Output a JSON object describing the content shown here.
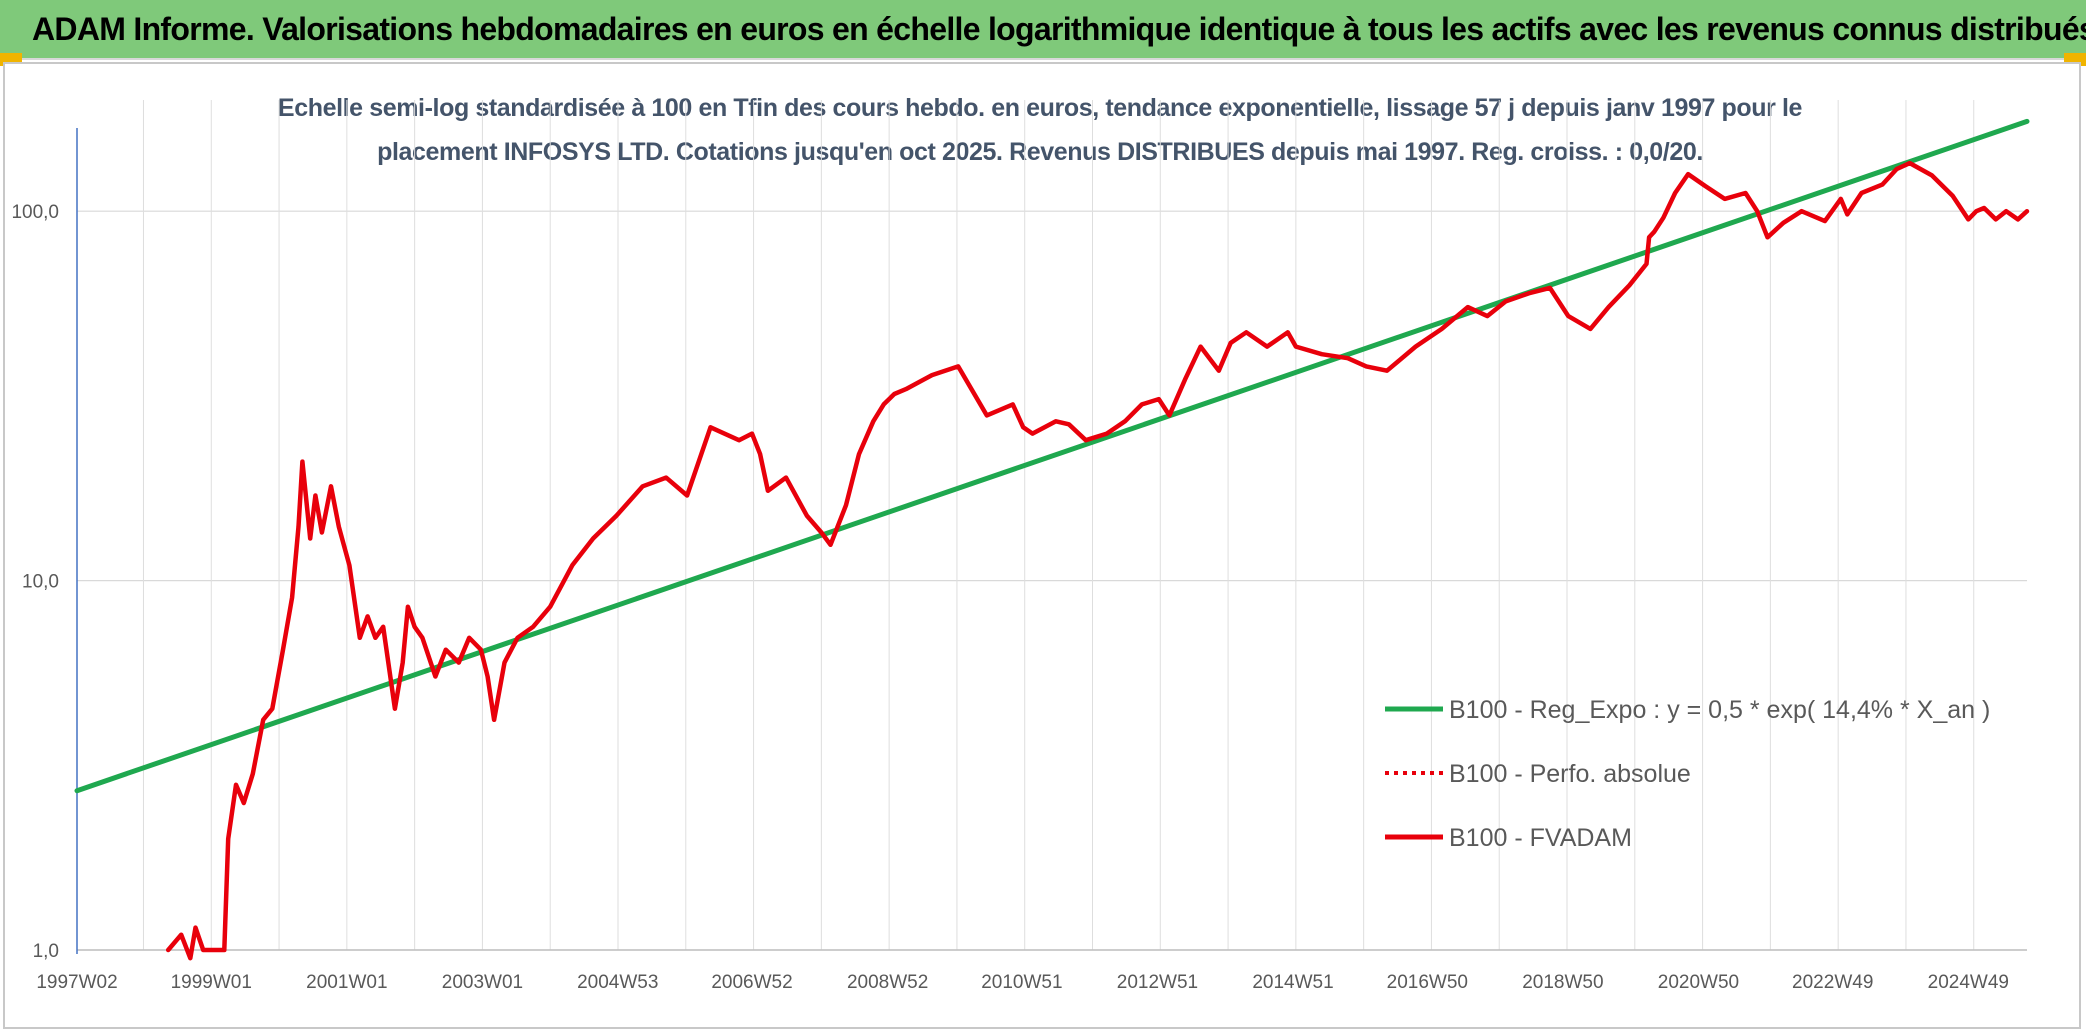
{
  "banner": {
    "title": "ADAM Informe. Valorisations hebdomadaires en euros en échelle logarithmique identique à tous les actifs avec les revenus connus distribués",
    "background": "#7fc97a"
  },
  "chart_data": {
    "type": "line",
    "title": "Echelle semi-log standardisée à 100 en Tfin des cours hebdo. en euros, tendance exponentielle, lissage 57 j depuis janv 1997 pour le placement INFOSYS LTD. Cotations jusqu'en oct 2025. Revenus DISTRIBUES depuis mai 1997. Reg. croiss. : 0,0/20.",
    "xlabel": "",
    "ylabel": "",
    "y_scale": "log",
    "ylim": [
      1,
      200
    ],
    "xlim": [
      "1997W02",
      "2025W42"
    ],
    "grid": true,
    "legend_position": "lower-right",
    "y_ticks": [
      {
        "value": 1,
        "label": "1,0"
      },
      {
        "value": 10,
        "label": "10,0"
      },
      {
        "value": 100,
        "label": "100,0"
      }
    ],
    "x_ticks": [
      {
        "value": "1997W02",
        "label": "1997W02"
      },
      {
        "value": "1999W01",
        "label": "1999W01"
      },
      {
        "value": "2001W01",
        "label": "2001W01"
      },
      {
        "value": "2003W01",
        "label": "2003W01"
      },
      {
        "value": "2004W53",
        "label": "2004W53"
      },
      {
        "value": "2006W52",
        "label": "2006W52"
      },
      {
        "value": "2008W52",
        "label": "2008W52"
      },
      {
        "value": "2010W51",
        "label": "2010W51"
      },
      {
        "value": "2012W51",
        "label": "2012W51"
      },
      {
        "value": "2014W51",
        "label": "2014W51"
      },
      {
        "value": "2016W50",
        "label": "2016W50"
      },
      {
        "value": "2018W50",
        "label": "2018W50"
      },
      {
        "value": "2020W50",
        "label": "2020W50"
      },
      {
        "value": "2022W49",
        "label": "2022W49"
      },
      {
        "value": "2024W49",
        "label": "2024W49"
      }
    ],
    "series": [
      {
        "name": "B100 - Reg_Expo : y = 0,5 * exp( 14,4% *  X_an )",
        "color": "#1fa84f",
        "style": "solid",
        "x": [
          "1997W02",
          "2025W42"
        ],
        "y": [
          2.7,
          175
        ]
      },
      {
        "name": "B100 - Perfo. absolue",
        "color": "#e8000b",
        "style": "dotted",
        "x": [],
        "y": []
      },
      {
        "name": "B100 - FVADAM",
        "color": "#e8000b",
        "style": "solid",
        "x": [
          "1998W20",
          "1998W30",
          "1998W37",
          "1998W41",
          "1998W47",
          "1999W04",
          "1999W11",
          "1999W14",
          "1999W20",
          "1999W26",
          "1999W33",
          "1999W41",
          "1999W48",
          "2000W04",
          "2000W11",
          "2000W16",
          "2000W19",
          "2000W25",
          "2000W29",
          "2000W34",
          "2000W41",
          "2000W47",
          "2001W03",
          "2001W11",
          "2001W17",
          "2001W23",
          "2001W29",
          "2001W38",
          "2001W44",
          "2001W48",
          "2002W01",
          "2002W07",
          "2002W17",
          "2002W25",
          "2002W35",
          "2002W43",
          "2002W52",
          "2003W05",
          "2003W10",
          "2003W18",
          "2003W28",
          "2003W40",
          "2004W01",
          "2004W18",
          "2004W34",
          "2004W52",
          "2005W20",
          "2005W38",
          "2006W02",
          "2006W20",
          "2006W42",
          "2006W52",
          "2007W06",
          "2007W12",
          "2007W26",
          "2007W42",
          "2008W01",
          "2008W08",
          "2008W20",
          "2008W30",
          "2008W41",
          "2008W49",
          "2009W05",
          "2009W14",
          "2009W34",
          "2010W02",
          "2010W24",
          "2010W44",
          "2010W52",
          "2011W07",
          "2011W25",
          "2011W35",
          "2011W48",
          "2012W12",
          "2012W26",
          "2012W39",
          "2012W52",
          "2013W08",
          "2013W20",
          "2013W32",
          "2013W46",
          "2014W03",
          "2014W15",
          "2014W31",
          "2014W47",
          "2015W01",
          "2015W21",
          "2015W41",
          "2016W03",
          "2016W19",
          "2016W41",
          "2017W09",
          "2017W29",
          "2017W44",
          "2018W06",
          "2018W24",
          "2018W40",
          "2019W02",
          "2019W19",
          "2019W33",
          "2019W49",
          "2020W10",
          "2020W12",
          "2020W16",
          "2020W23",
          "2020W32",
          "2020W42",
          "2021W03",
          "2021W18",
          "2021W34",
          "2021W43",
          "2021W51",
          "2022W11",
          "2022W25",
          "2022W43",
          "2023W03",
          "2023W08",
          "2023W19",
          "2023W35",
          "2023W46",
          "2024W04",
          "2024W21",
          "2024W37",
          "2024W49",
          "2025W03",
          "2025W09",
          "2025W18",
          "2025W26",
          "2025W35",
          "2025W42"
        ],
        "y": [
          1.0,
          1.1,
          0.95,
          1.15,
          1.0,
          1.0,
          1.0,
          2.0,
          2.8,
          2.5,
          3.0,
          4.2,
          4.5,
          6.5,
          9.0,
          14.0,
          21.0,
          13.0,
          17.0,
          13.5,
          18.0,
          14.0,
          11.0,
          7.0,
          8.0,
          7.0,
          7.5,
          4.5,
          6.0,
          8.5,
          7.5,
          7.0,
          5.5,
          6.5,
          6.0,
          7.0,
          6.5,
          5.5,
          4.2,
          6.0,
          7.0,
          7.5,
          8.5,
          11.0,
          13.0,
          15.0,
          18.0,
          19.0,
          17.0,
          26.0,
          24.0,
          25.0,
          22.0,
          17.5,
          19.0,
          15.0,
          13.5,
          12.5,
          16.0,
          22.0,
          27.0,
          30.0,
          32.0,
          33.0,
          36.0,
          38.0,
          28.0,
          30.0,
          26.0,
          25.0,
          27.0,
          26.5,
          24.0,
          25.0,
          27.0,
          30.0,
          31.0,
          28.0,
          35.0,
          43.0,
          37.0,
          44.0,
          47.0,
          43.0,
          47.0,
          43.0,
          41.0,
          40.0,
          38.0,
          37.0,
          43.0,
          48.0,
          55.0,
          52.0,
          57.0,
          60.0,
          62.0,
          52.0,
          48.0,
          55.0,
          63.0,
          72.0,
          85.0,
          88.0,
          96.0,
          112.0,
          126.0,
          117.0,
          108.0,
          112.0,
          100.0,
          85.0,
          93.0,
          100.0,
          94.0,
          108.0,
          98.0,
          112.0,
          118.0,
          130.0,
          135.0,
          125.0,
          110.0,
          95.0,
          100.0,
          102.0,
          95.0,
          100.0,
          95.0,
          100.0
        ]
      }
    ]
  }
}
